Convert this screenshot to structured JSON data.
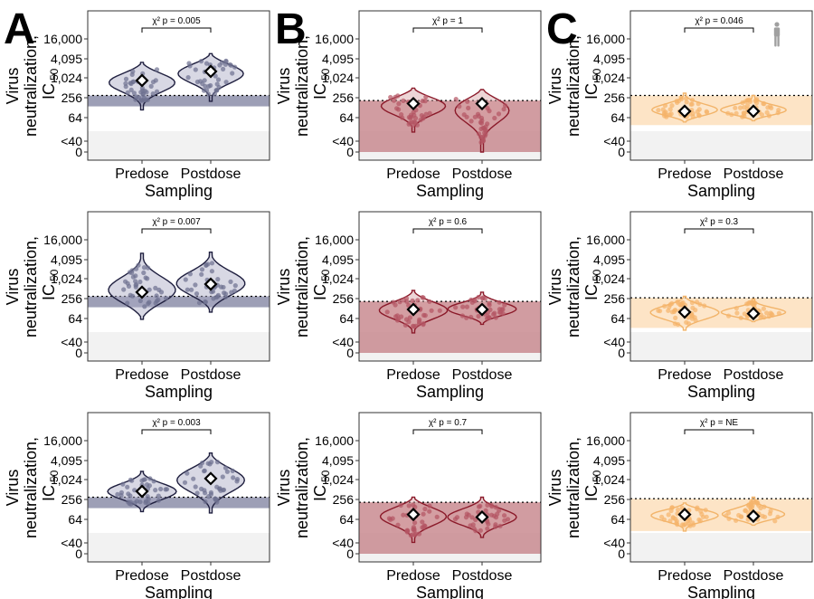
{
  "colors": {
    "A": {
      "line": "#1f1f3f",
      "fill": "#a8a9c4",
      "band": "#8c8ea9",
      "pt": "#6e7090"
    },
    "B": {
      "line": "#8b1a2a",
      "fill": "#d7a1a5",
      "band": "#c98b90",
      "pt": "#b35463"
    },
    "C": {
      "line": "#f2b46a",
      "fill": "#fde9cf",
      "band": "#fde4c6",
      "pt": "#f5b36b"
    },
    "background_grey": "#f2f2f2"
  },
  "figure_icon": "person-silhouette-icon",
  "chart_data": [
    {
      "type": "violin",
      "panel": "A",
      "title_letter": "A",
      "stat": "χ² p = 0.005",
      "ylabel_line1": "Virus",
      "ylabel_line2": "neutralization,",
      "ylabel_ic": "IC",
      "ylabel_sub": "50",
      "xlabel": "Sampling",
      "categories": [
        "Predose",
        "Postdose"
      ],
      "yticks": [
        "16,000",
        "4,095",
        "1,024",
        "256",
        "64",
        "<40",
        "0"
      ],
      "threshold": 300,
      "band_low": 140,
      "band_high": 300,
      "medians": [
        850,
        1600
      ],
      "ranges": [
        [
          110,
          3000
        ],
        [
          200,
          5500
        ]
      ]
    },
    {
      "type": "violin",
      "panel": "B",
      "title_letter": "B",
      "stat": "χ² p = 1",
      "ylabel_line1": "Virus",
      "ylabel_line2": "neutralization,",
      "ylabel_ic": "IC",
      "ylabel_sub": "50",
      "xlabel": "Sampling",
      "categories": [
        "Predose",
        "Postdose"
      ],
      "yticks": [
        "16,000",
        "4,095",
        "1,024",
        "256",
        "64",
        "<40",
        "0"
      ],
      "threshold": 210,
      "band_low": 0,
      "band_high": 210,
      "medians": [
        170,
        170
      ],
      "ranges": [
        [
          20,
          500
        ],
        [
          3,
          450
        ]
      ]
    },
    {
      "type": "violin",
      "panel": "C",
      "title_letter": "C",
      "stat": "χ² p = 0.046",
      "ylabel_line1": "Virus",
      "ylabel_line2": "neutralization,",
      "ylabel_ic": "IC",
      "ylabel_sub": "50",
      "xlabel": "Sampling",
      "categories": [
        "Predose",
        "Postdose"
      ],
      "yticks": [
        "16,000",
        "4,095",
        "1,024",
        "256",
        "64",
        "<40",
        "0"
      ],
      "threshold": 300,
      "band_low": 35,
      "band_high": 300,
      "medians": [
        100,
        100
      ],
      "ranges": [
        [
          45,
          350
        ],
        [
          50,
          300
        ]
      ]
    },
    {
      "type": "violin",
      "panel": "A",
      "stat": "χ² p = 0.007",
      "ylabel_line1": "Virus",
      "ylabel_line2": "neutralization,",
      "ylabel_ic": "IC",
      "ylabel_sub": "50",
      "xlabel": "Sampling",
      "categories": [
        "Predose",
        "Postdose"
      ],
      "yticks": [
        "16,000",
        "4,095",
        "1,024",
        "256",
        "64",
        "<40",
        "0"
      ],
      "threshold": 300,
      "band_low": 140,
      "band_high": 300,
      "medians": [
        400,
        700
      ],
      "ranges": [
        [
          60,
          6000
        ],
        [
          100,
          6500
        ]
      ]
    },
    {
      "type": "violin",
      "panel": "B",
      "stat": "χ² p = 0.6",
      "ylabel_line1": "Virus",
      "ylabel_line2": "neutralization,",
      "ylabel_ic": "IC",
      "ylabel_sub": "50",
      "xlabel": "Sampling",
      "categories": [
        "Predose",
        "Postdose"
      ],
      "yticks": [
        "16,000",
        "4,095",
        "1,024",
        "256",
        "64",
        "<40",
        "0"
      ],
      "threshold": 210,
      "band_low": 0,
      "band_high": 210,
      "medians": [
        120,
        120
      ],
      "ranges": [
        [
          20,
          450
        ],
        [
          40,
          400
        ]
      ]
    },
    {
      "type": "violin",
      "panel": "C",
      "stat": "χ² p = 0.3",
      "ylabel_line1": "Virus",
      "ylabel_line2": "neutralization,",
      "ylabel_ic": "IC",
      "ylabel_sub": "50",
      "xlabel": "Sampling",
      "categories": [
        "Predose",
        "Postdose"
      ],
      "yticks": [
        "16,000",
        "4,095",
        "1,024",
        "256",
        "64",
        "<40",
        "0"
      ],
      "threshold": 270,
      "band_low": 30,
      "band_high": 270,
      "medians": [
        100,
        90
      ],
      "ranges": [
        [
          25,
          300
        ],
        [
          50,
          250
        ]
      ]
    },
    {
      "type": "violin",
      "panel": "A",
      "stat": "χ² p = 0.003",
      "ylabel_line1": "Virus",
      "ylabel_line2": "neutralization,",
      "ylabel_ic": "IC",
      "ylabel_sub": "50",
      "xlabel": "Sampling",
      "categories": [
        "Predose",
        "Postdose"
      ],
      "yticks": [
        "16,000",
        "4,095",
        "1,024",
        "256",
        "64",
        "<40",
        "0"
      ],
      "threshold": 300,
      "band_low": 140,
      "band_high": 300,
      "medians": [
        450,
        1100
      ],
      "ranges": [
        [
          110,
          1800
        ],
        [
          100,
          6500
        ]
      ]
    },
    {
      "type": "violin",
      "panel": "B",
      "stat": "χ² p = 0.7",
      "ylabel_line1": "Virus",
      "ylabel_line2": "neutralization,",
      "ylabel_ic": "IC",
      "ylabel_sub": "50",
      "xlabel": "Sampling",
      "categories": [
        "Predose",
        "Postdose"
      ],
      "yticks": [
        "16,000",
        "4,095",
        "1,024",
        "256",
        "64",
        "<40",
        "0"
      ],
      "threshold": 210,
      "band_low": 0,
      "band_high": 210,
      "medians": [
        90,
        75
      ],
      "ranges": [
        [
          10,
          300
        ],
        [
          15,
          300
        ]
      ]
    },
    {
      "type": "violin",
      "panel": "C",
      "stat": "χ² p = NE",
      "ylabel_line1": "Virus",
      "ylabel_line2": "neutralization,",
      "ylabel_ic": "IC",
      "ylabel_sub": "50",
      "xlabel": "Sampling",
      "categories": [
        "Predose",
        "Postdose"
      ],
      "yticks": [
        "16,000",
        "4,095",
        "1,024",
        "256",
        "64",
        "<40",
        "0"
      ],
      "threshold": 270,
      "band_low": 25,
      "band_high": 270,
      "medians": [
        90,
        80
      ],
      "ranges": [
        [
          25,
          200
        ],
        [
          40,
          300
        ]
      ]
    }
  ]
}
